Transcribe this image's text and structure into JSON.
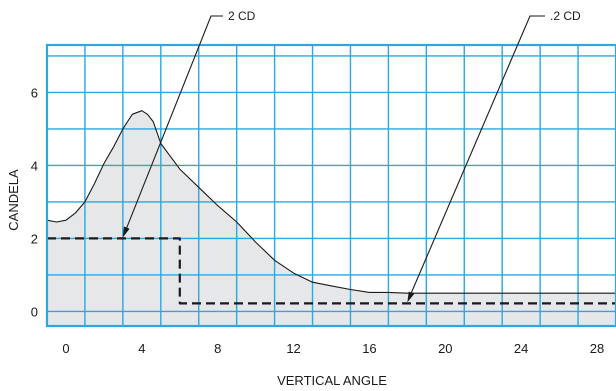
{
  "chart_data": {
    "type": "area",
    "xlabel": "VERTICAL ANGLE",
    "ylabel": "CANDELA",
    "xlim": [
      -1,
      29
    ],
    "ylim": [
      -0.4,
      7.3
    ],
    "x_ticks": [
      0,
      4,
      8,
      12,
      16,
      20,
      24,
      28
    ],
    "y_ticks": [
      0,
      2,
      4,
      6
    ],
    "grid": true,
    "colors": {
      "grid": "#2aa8e0",
      "fill": "#e6e7e8",
      "curve": "#1a1a1a",
      "step": "#1a1a1a"
    },
    "series": [
      {
        "style": "solid",
        "fill": true,
        "x": [
          -1,
          -0.5,
          0,
          0.5,
          1,
          1.5,
          2,
          2.5,
          3,
          3.5,
          4,
          4.3,
          4.6,
          5,
          5.5,
          6,
          7,
          8,
          9,
          10,
          11,
          12,
          13,
          14,
          15,
          16,
          17,
          18,
          20,
          24,
          28,
          29
        ],
        "y": [
          2.5,
          2.45,
          2.5,
          2.7,
          3.0,
          3.5,
          4.05,
          4.5,
          5.0,
          5.4,
          5.5,
          5.4,
          5.2,
          4.6,
          4.25,
          3.9,
          3.4,
          2.9,
          2.45,
          1.9,
          1.4,
          1.05,
          0.8,
          0.7,
          0.6,
          0.52,
          0.52,
          0.5,
          0.5,
          0.5,
          0.5,
          0.5
        ]
      },
      {
        "style": "dashed",
        "fill": false,
        "x": [
          -1,
          6,
          6,
          29
        ],
        "y": [
          2,
          2,
          0.22,
          0.22
        ]
      }
    ],
    "annotations": [
      {
        "text": "2 CD",
        "point": [
          3,
          2
        ]
      },
      {
        "text": ".2 CD",
        "point": [
          18,
          0.22
        ]
      }
    ]
  }
}
